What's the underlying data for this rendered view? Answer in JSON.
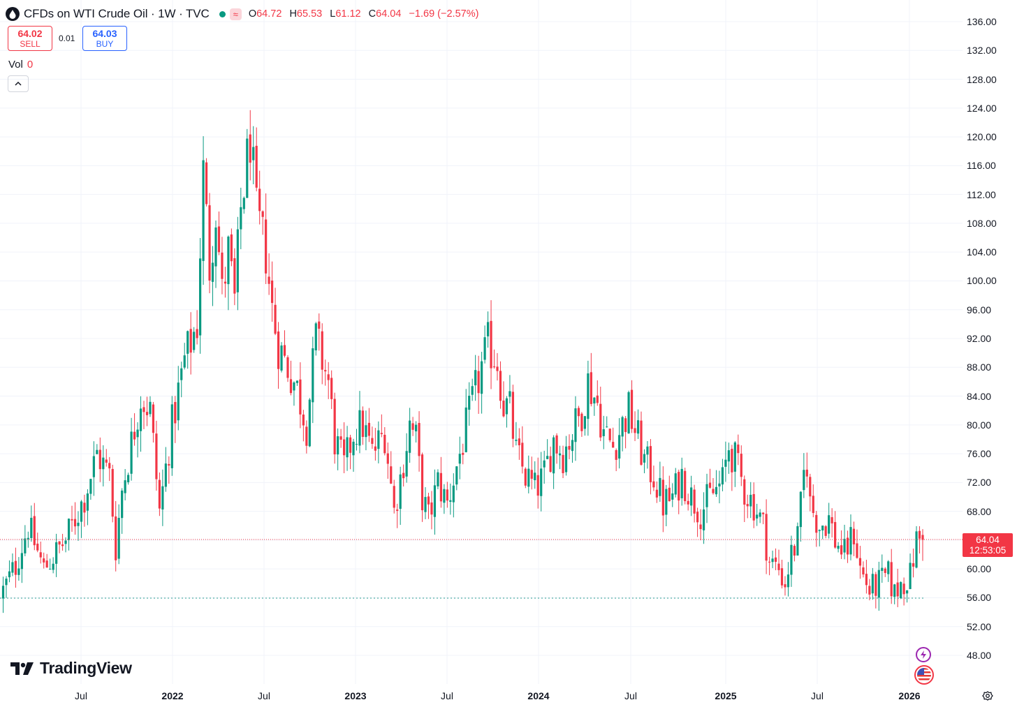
{
  "header": {
    "title": "CFDs on WTI Crude Oil · 1W · TVC",
    "approx_badge": "≈",
    "ohlc": [
      {
        "label": "O",
        "value": "64.72"
      },
      {
        "label": "H",
        "value": "65.53"
      },
      {
        "label": "L",
        "value": "61.12"
      },
      {
        "label": "C",
        "value": "64.04"
      }
    ],
    "change": "−1.69 (−2.57%)"
  },
  "trade": {
    "sell_price": "64.02",
    "sell_label": "SELL",
    "spread": "0.01",
    "buy_price": "64.03",
    "buy_label": "BUY"
  },
  "volume": {
    "label": "Vol",
    "value": "0"
  },
  "price_label": {
    "price": "64.04",
    "countdown": "12:53:05"
  },
  "branding": {
    "name": "TradingView"
  },
  "icons": [
    "collapse-chevron-icon",
    "lightning-icon",
    "us-flag-icon",
    "settings-gear-icon",
    "tradingview-logo-icon"
  ],
  "colors": {
    "up": "#089981",
    "down": "#f23645",
    "grid": "#f0f3fa",
    "text": "#131722",
    "buy": "#2962ff"
  },
  "chart_data": {
    "type": "candlestick",
    "symbol": "CFDs on WTI Crude Oil",
    "interval": "1W",
    "ylim": [
      44,
      138
    ],
    "y_ticks": [
      "136.00",
      "132.00",
      "128.00",
      "124.00",
      "120.00",
      "116.00",
      "112.00",
      "108.00",
      "104.00",
      "100.00",
      "96.00",
      "92.00",
      "88.00",
      "84.00",
      "80.00",
      "76.00",
      "72.00",
      "68.00",
      "64.00",
      "60.00",
      "56.00",
      "52.00",
      "48.00"
    ],
    "x_ticks": [
      {
        "label": "Jul",
        "bold": false
      },
      {
        "label": "2022",
        "bold": true
      },
      {
        "label": "Jul",
        "bold": false
      },
      {
        "label": "2023",
        "bold": true
      },
      {
        "label": "Jul",
        "bold": false
      },
      {
        "label": "2024",
        "bold": true
      },
      {
        "label": "Jul",
        "bold": false
      },
      {
        "label": "2025",
        "bold": true
      },
      {
        "label": "Jul",
        "bold": false
      },
      {
        "label": "2026",
        "bold": true
      }
    ],
    "current_price": 64.04,
    "reference_line": 56.0,
    "close_path": [
      {
        "x": 0,
        "y": 57.0
      },
      {
        "x": 4,
        "y": 60.5
      },
      {
        "x": 8,
        "y": 66.0
      },
      {
        "x": 13,
        "y": 60.0
      },
      {
        "x": 20,
        "y": 64.0
      },
      {
        "x": 26,
        "y": 70.0
      },
      {
        "x": 30,
        "y": 76.0
      },
      {
        "x": 34,
        "y": 73.0
      },
      {
        "x": 36,
        "y": 63.0
      },
      {
        "x": 38,
        "y": 71.0
      },
      {
        "x": 44,
        "y": 84.0
      },
      {
        "x": 47,
        "y": 82.0
      },
      {
        "x": 50,
        "y": 68.0
      },
      {
        "x": 54,
        "y": 80.0
      },
      {
        "x": 58,
        "y": 89.0
      },
      {
        "x": 62,
        "y": 94.0
      },
      {
        "x": 64,
        "y": 115.0
      },
      {
        "x": 66,
        "y": 102.0
      },
      {
        "x": 68,
        "y": 110.0
      },
      {
        "x": 70,
        "y": 98.0
      },
      {
        "x": 72,
        "y": 104.0
      },
      {
        "x": 74,
        "y": 97.0
      },
      {
        "x": 76,
        "y": 110.0
      },
      {
        "x": 79,
        "y": 120.0
      },
      {
        "x": 81,
        "y": 109.0
      },
      {
        "x": 84,
        "y": 104.0
      },
      {
        "x": 86,
        "y": 96.0
      },
      {
        "x": 88,
        "y": 91.0
      },
      {
        "x": 91,
        "y": 88.0
      },
      {
        "x": 94,
        "y": 85.0
      },
      {
        "x": 97,
        "y": 80.0
      },
      {
        "x": 100,
        "y": 92.0
      },
      {
        "x": 104,
        "y": 86.0
      },
      {
        "x": 106,
        "y": 78.0
      },
      {
        "x": 109,
        "y": 74.0
      },
      {
        "x": 112,
        "y": 79.0
      },
      {
        "x": 115,
        "y": 80.0
      },
      {
        "x": 118,
        "y": 76.0
      },
      {
        "x": 122,
        "y": 79.0
      },
      {
        "x": 125,
        "y": 68.0
      },
      {
        "x": 128,
        "y": 75.0
      },
      {
        "x": 130,
        "y": 80.0
      },
      {
        "x": 132,
        "y": 78.0
      },
      {
        "x": 134,
        "y": 70.0
      },
      {
        "x": 136,
        "y": 67.0
      },
      {
        "x": 139,
        "y": 72.0
      },
      {
        "x": 142,
        "y": 69.0
      },
      {
        "x": 146,
        "y": 76.0
      },
      {
        "x": 150,
        "y": 83.0
      },
      {
        "x": 153,
        "y": 88.0
      },
      {
        "x": 155,
        "y": 91.0
      },
      {
        "x": 158,
        "y": 89.0
      },
      {
        "x": 160,
        "y": 83.0
      },
      {
        "x": 162,
        "y": 82.0
      },
      {
        "x": 164,
        "y": 76.0
      },
      {
        "x": 167,
        "y": 73.0
      },
      {
        "x": 170,
        "y": 71.0
      },
      {
        "x": 173,
        "y": 73.0
      },
      {
        "x": 176,
        "y": 78.0
      },
      {
        "x": 179,
        "y": 76.0
      },
      {
        "x": 182,
        "y": 79.0
      },
      {
        "x": 185,
        "y": 82.0
      },
      {
        "x": 187,
        "y": 86.0
      },
      {
        "x": 190,
        "y": 83.0
      },
      {
        "x": 192,
        "y": 79.0
      },
      {
        "x": 195,
        "y": 77.0
      },
      {
        "x": 198,
        "y": 80.0
      },
      {
        "x": 200,
        "y": 82.0
      },
      {
        "x": 203,
        "y": 78.0
      },
      {
        "x": 205,
        "y": 75.0
      },
      {
        "x": 208,
        "y": 73.0
      },
      {
        "x": 211,
        "y": 69.0
      },
      {
        "x": 214,
        "y": 70.0
      },
      {
        "x": 217,
        "y": 73.0
      },
      {
        "x": 220,
        "y": 70.0
      },
      {
        "x": 223,
        "y": 68.0
      },
      {
        "x": 226,
        "y": 70.0
      },
      {
        "x": 230,
        "y": 72.0
      },
      {
        "x": 232,
        "y": 77.0
      },
      {
        "x": 234,
        "y": 75.0
      },
      {
        "x": 237,
        "y": 71.0
      },
      {
        "x": 240,
        "y": 69.0
      },
      {
        "x": 243,
        "y": 66.0
      },
      {
        "x": 245,
        "y": 61.0
      },
      {
        "x": 248,
        "y": 60.0
      },
      {
        "x": 250,
        "y": 58.0
      },
      {
        "x": 252,
        "y": 62.0
      },
      {
        "x": 254,
        "y": 64.0
      },
      {
        "x": 256,
        "y": 73.0
      },
      {
        "x": 257,
        "y": 75.0
      },
      {
        "x": 258,
        "y": 69.0
      },
      {
        "x": 261,
        "y": 66.0
      },
      {
        "x": 264,
        "y": 67.0
      },
      {
        "x": 266,
        "y": 64.0
      },
      {
        "x": 269,
        "y": 62.0
      },
      {
        "x": 272,
        "y": 65.0
      },
      {
        "x": 274,
        "y": 60.0
      },
      {
        "x": 277,
        "y": 57.0
      },
      {
        "x": 280,
        "y": 58.0
      },
      {
        "x": 283,
        "y": 59.0
      },
      {
        "x": 285,
        "y": 56.5
      },
      {
        "x": 287,
        "y": 58.0
      },
      {
        "x": 290,
        "y": 59.0
      },
      {
        "x": 292,
        "y": 64.0
      },
      {
        "x": 294,
        "y": 64.04
      }
    ]
  }
}
